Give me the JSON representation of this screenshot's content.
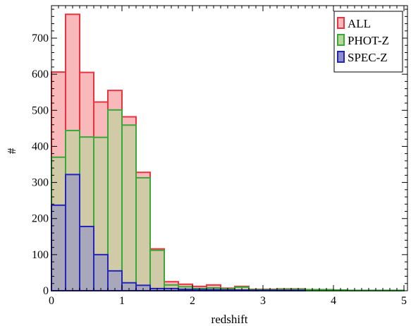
{
  "chart_data": {
    "type": "bar",
    "subtype": "overlaid-histogram",
    "title": "",
    "xlabel": "redshift",
    "ylabel": "#",
    "xlim": [
      0,
      5.05
    ],
    "ylim": [
      0,
      790
    ],
    "xticks": [
      0,
      1,
      2,
      3,
      4,
      5
    ],
    "yticks": [
      0,
      100,
      200,
      300,
      400,
      500,
      600,
      700
    ],
    "bin_width": 0.2,
    "bin_starts": [
      0,
      0.2,
      0.4,
      0.6,
      0.8,
      1.0,
      1.2,
      1.4,
      1.6,
      1.8,
      2.0,
      2.2,
      2.4,
      2.6,
      2.8,
      3.0,
      3.2,
      3.4,
      3.6,
      3.8,
      4.0,
      4.2,
      4.4,
      4.6,
      4.8
    ],
    "grid": false,
    "legend_position": "top-right",
    "series": [
      {
        "name": "ALL",
        "fill": "#f9b9bb",
        "stroke": "#e8343e",
        "values": [
          606,
          766,
          605,
          523,
          555,
          482,
          328,
          116,
          25,
          18,
          12,
          16,
          7,
          12,
          4,
          4,
          5,
          5,
          3,
          3,
          2,
          1,
          1,
          1,
          1
        ]
      },
      {
        "name": "PHOT-Z",
        "fill": "#b6d69a",
        "stroke": "#39a839",
        "values": [
          370,
          444,
          426,
          425,
          501,
          459,
          313,
          112,
          16,
          11,
          6,
          8,
          5,
          10,
          3,
          3,
          4,
          4,
          3,
          3,
          2,
          1,
          1,
          1,
          1
        ]
      },
      {
        "name": "SPEC-Z",
        "fill": "#8e8fc6",
        "stroke": "#2424b8",
        "values": [
          237,
          322,
          178,
          100,
          55,
          22,
          15,
          6,
          6,
          4,
          3,
          3,
          2,
          2,
          1,
          1,
          1,
          1,
          0,
          0,
          0,
          0,
          0,
          0,
          0
        ]
      }
    ]
  }
}
